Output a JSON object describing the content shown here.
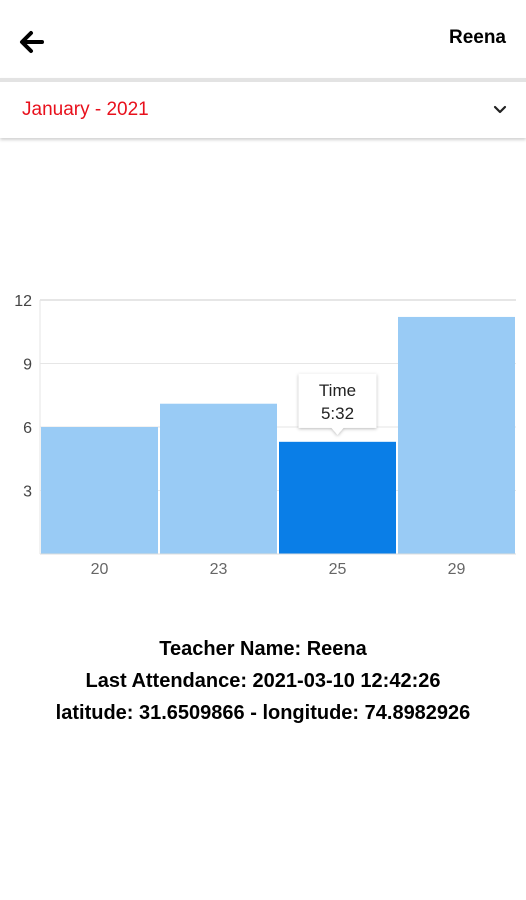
{
  "header": {
    "back_icon": "arrow-left-icon",
    "user_name": "Reena"
  },
  "month_select": {
    "value": "January - 2021",
    "color": "#e8101c",
    "icon": "chevron-down-icon"
  },
  "chart_data": {
    "type": "bar",
    "categories": [
      "20",
      "23",
      "25",
      "29"
    ],
    "values": [
      6,
      7.1,
      5.3,
      11.2
    ],
    "ylim": [
      0,
      12
    ],
    "yticks": [
      3,
      6,
      9,
      12
    ],
    "highlighted_index": 2,
    "bar_color": "#99cbf5",
    "highlight_color": "#0a7ee7",
    "grid": true,
    "tooltip": {
      "title": "Time",
      "value": "5:32"
    }
  },
  "info": {
    "teacher": "Teacher Name: Reena",
    "last_attendance": "Last Attendance: 2021-03-10 12:42:26",
    "location": "latitude: 31.6509866 - longitude: 74.8982926"
  }
}
